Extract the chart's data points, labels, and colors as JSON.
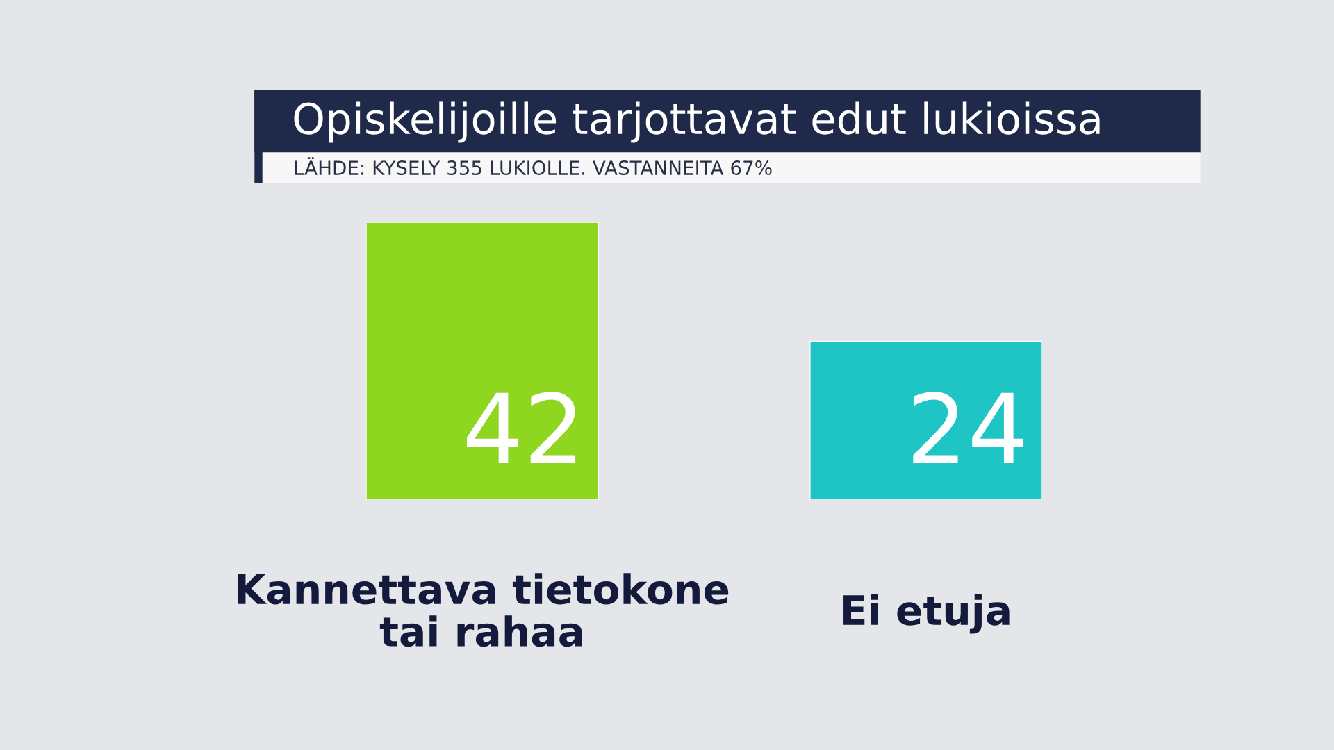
{
  "chart_data": {
    "type": "bar",
    "title": "Opiskelijoille tarjottavat edut lukioissa",
    "subtitle": "LÄHDE: KYSELY 355 LUKIOLLE. VASTANNEITA 67%",
    "categories": [
      "Kannettava tietokone\ntai rahaa",
      "Ei etuja"
    ],
    "values": [
      42,
      24
    ],
    "colors": [
      "#8fd620",
      "#1fc4c4"
    ],
    "data_labels": true
  }
}
